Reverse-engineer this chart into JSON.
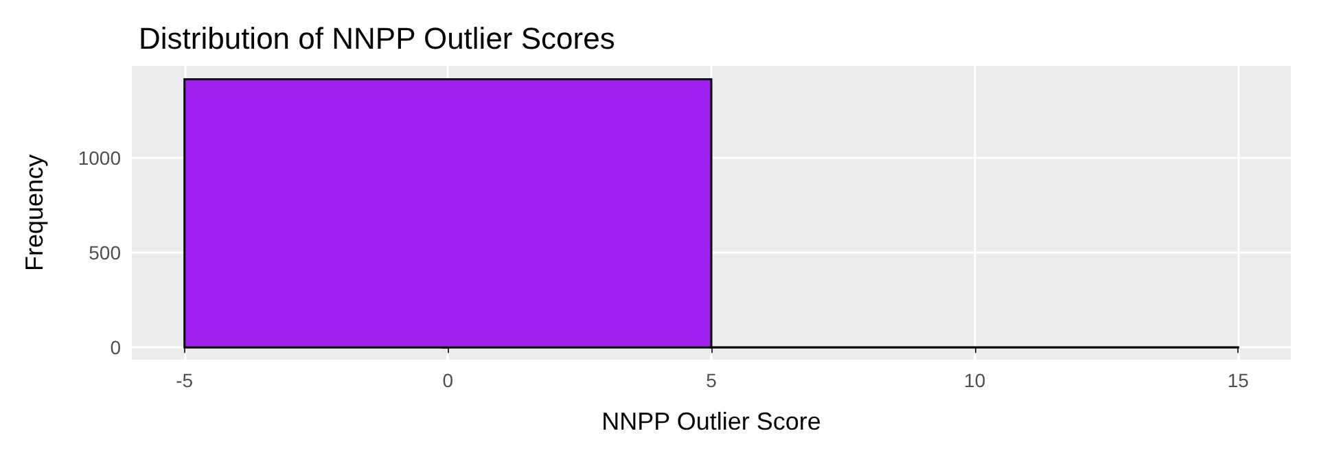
{
  "chart_data": {
    "type": "histogram",
    "title": "Distribution of NNPP Outlier Scores",
    "xlabel": "NNPP Outlier Score",
    "ylabel": "Frequency",
    "bins": [
      -5,
      5,
      15
    ],
    "values": [
      1414,
      1
    ],
    "color": "#a020f0",
    "xlim": [
      -6,
      16
    ],
    "xticks": [
      -5,
      0,
      5,
      10,
      15
    ],
    "ylim": [
      -64,
      1485
    ],
    "yticks": [
      0,
      500,
      1000
    ],
    "grid": true
  }
}
